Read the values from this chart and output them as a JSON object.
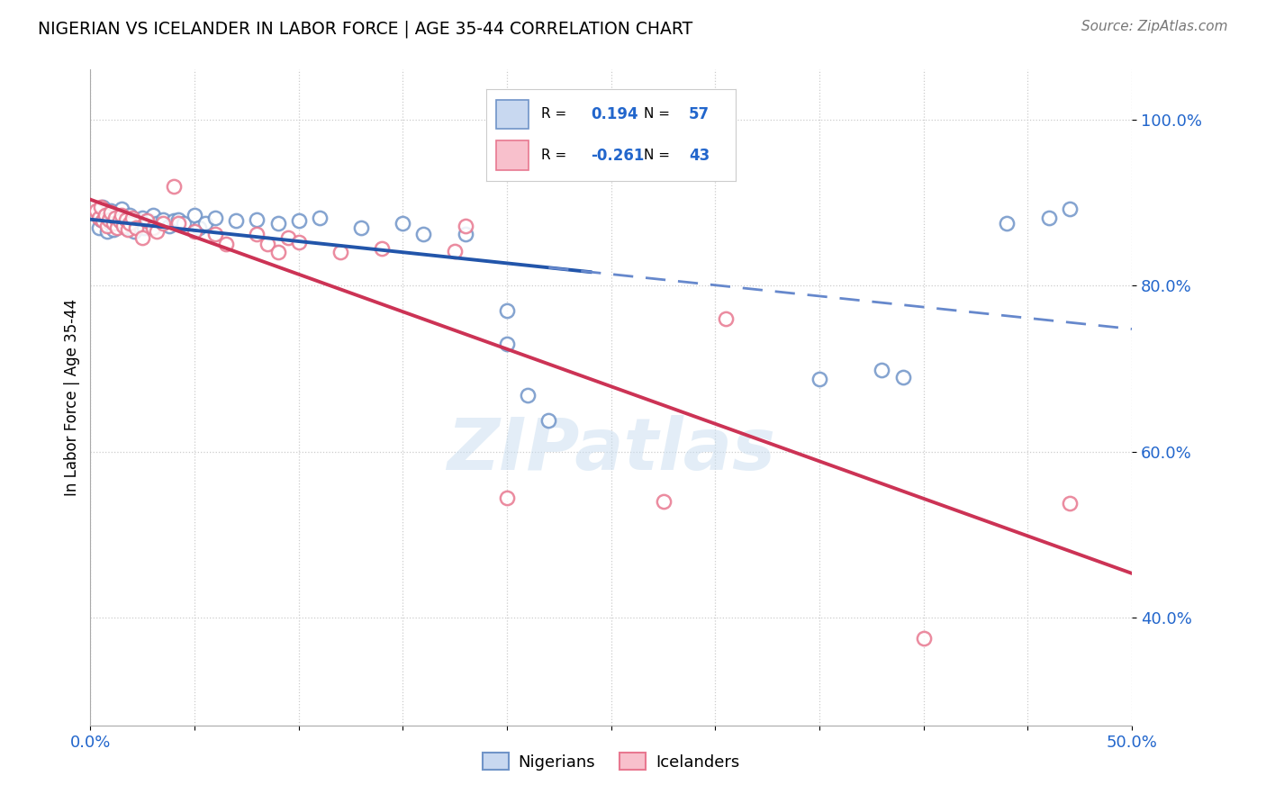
{
  "title": "NIGERIAN VS ICELANDER IN LABOR FORCE | AGE 35-44 CORRELATION CHART",
  "source": "Source: ZipAtlas.com",
  "ylabel": "In Labor Force | Age 35-44",
  "xlim": [
    0.0,
    0.5
  ],
  "ylim": [
    0.27,
    1.06
  ],
  "xtick_pos": [
    0.0,
    0.05,
    0.1,
    0.15,
    0.2,
    0.25,
    0.3,
    0.35,
    0.4,
    0.45,
    0.5
  ],
  "xticklabels": [
    "0.0%",
    "",
    "",
    "",
    "",
    "",
    "",
    "",
    "",
    "",
    "50.0%"
  ],
  "ytick_positions": [
    0.4,
    0.6,
    0.8,
    1.0
  ],
  "ytick_labels": [
    "40.0%",
    "60.0%",
    "80.0%",
    "100.0%"
  ],
  "legend_r_blue": "0.194",
  "legend_n_blue": "57",
  "legend_r_pink": "-0.261",
  "legend_n_pink": "43",
  "blue_edge_color": "#7094c8",
  "pink_edge_color": "#e87890",
  "trend_blue_color": "#2255aa",
  "trend_pink_color": "#cc3355",
  "dash_blue_color": "#6688cc",
  "blue_points": [
    [
      0.004,
      0.87
    ],
    [
      0.005,
      0.88
    ],
    [
      0.006,
      0.895
    ],
    [
      0.007,
      0.88
    ],
    [
      0.008,
      0.875
    ],
    [
      0.008,
      0.865
    ],
    [
      0.009,
      0.885
    ],
    [
      0.01,
      0.89
    ],
    [
      0.01,
      0.875
    ],
    [
      0.011,
      0.868
    ],
    [
      0.012,
      0.882
    ],
    [
      0.013,
      0.878
    ],
    [
      0.014,
      0.885
    ],
    [
      0.015,
      0.892
    ],
    [
      0.015,
      0.875
    ],
    [
      0.016,
      0.88
    ],
    [
      0.017,
      0.87
    ],
    [
      0.018,
      0.878
    ],
    [
      0.019,
      0.885
    ],
    [
      0.02,
      0.875
    ],
    [
      0.021,
      0.865
    ],
    [
      0.022,
      0.88
    ],
    [
      0.023,
      0.872
    ],
    [
      0.024,
      0.878
    ],
    [
      0.025,
      0.882
    ],
    [
      0.026,
      0.87
    ],
    [
      0.028,
      0.878
    ],
    [
      0.03,
      0.885
    ],
    [
      0.032,
      0.875
    ],
    [
      0.035,
      0.88
    ],
    [
      0.038,
      0.872
    ],
    [
      0.04,
      0.878
    ],
    [
      0.042,
      0.88
    ],
    [
      0.045,
      0.875
    ],
    [
      0.05,
      0.885
    ],
    [
      0.052,
      0.87
    ],
    [
      0.055,
      0.875
    ],
    [
      0.06,
      0.882
    ],
    [
      0.07,
      0.878
    ],
    [
      0.08,
      0.88
    ],
    [
      0.09,
      0.875
    ],
    [
      0.1,
      0.878
    ],
    [
      0.11,
      0.882
    ],
    [
      0.13,
      0.87
    ],
    [
      0.15,
      0.875
    ],
    [
      0.16,
      0.862
    ],
    [
      0.18,
      0.862
    ],
    [
      0.2,
      0.77
    ],
    [
      0.2,
      0.73
    ],
    [
      0.21,
      0.668
    ],
    [
      0.22,
      0.638
    ],
    [
      0.35,
      0.688
    ],
    [
      0.38,
      0.698
    ],
    [
      0.39,
      0.69
    ],
    [
      0.44,
      0.875
    ],
    [
      0.46,
      0.882
    ],
    [
      0.47,
      0.892
    ]
  ],
  "pink_points": [
    [
      0.003,
      0.89
    ],
    [
      0.004,
      0.882
    ],
    [
      0.005,
      0.895
    ],
    [
      0.006,
      0.878
    ],
    [
      0.007,
      0.885
    ],
    [
      0.008,
      0.872
    ],
    [
      0.009,
      0.88
    ],
    [
      0.01,
      0.888
    ],
    [
      0.011,
      0.875
    ],
    [
      0.012,
      0.882
    ],
    [
      0.013,
      0.87
    ],
    [
      0.014,
      0.878
    ],
    [
      0.015,
      0.885
    ],
    [
      0.016,
      0.872
    ],
    [
      0.017,
      0.88
    ],
    [
      0.018,
      0.868
    ],
    [
      0.019,
      0.875
    ],
    [
      0.02,
      0.882
    ],
    [
      0.022,
      0.87
    ],
    [
      0.025,
      0.858
    ],
    [
      0.027,
      0.878
    ],
    [
      0.03,
      0.87
    ],
    [
      0.032,
      0.865
    ],
    [
      0.035,
      0.875
    ],
    [
      0.04,
      0.92
    ],
    [
      0.042,
      0.875
    ],
    [
      0.05,
      0.865
    ],
    [
      0.06,
      0.862
    ],
    [
      0.065,
      0.85
    ],
    [
      0.08,
      0.862
    ],
    [
      0.085,
      0.85
    ],
    [
      0.09,
      0.84
    ],
    [
      0.095,
      0.858
    ],
    [
      0.1,
      0.852
    ],
    [
      0.12,
      0.84
    ],
    [
      0.14,
      0.845
    ],
    [
      0.175,
      0.842
    ],
    [
      0.18,
      0.872
    ],
    [
      0.2,
      0.545
    ],
    [
      0.275,
      0.54
    ],
    [
      0.305,
      0.76
    ],
    [
      0.4,
      0.375
    ],
    [
      0.47,
      0.538
    ]
  ],
  "watermark": "ZIPatlas",
  "grid_color": "#cccccc",
  "bg_color": "#ffffff"
}
